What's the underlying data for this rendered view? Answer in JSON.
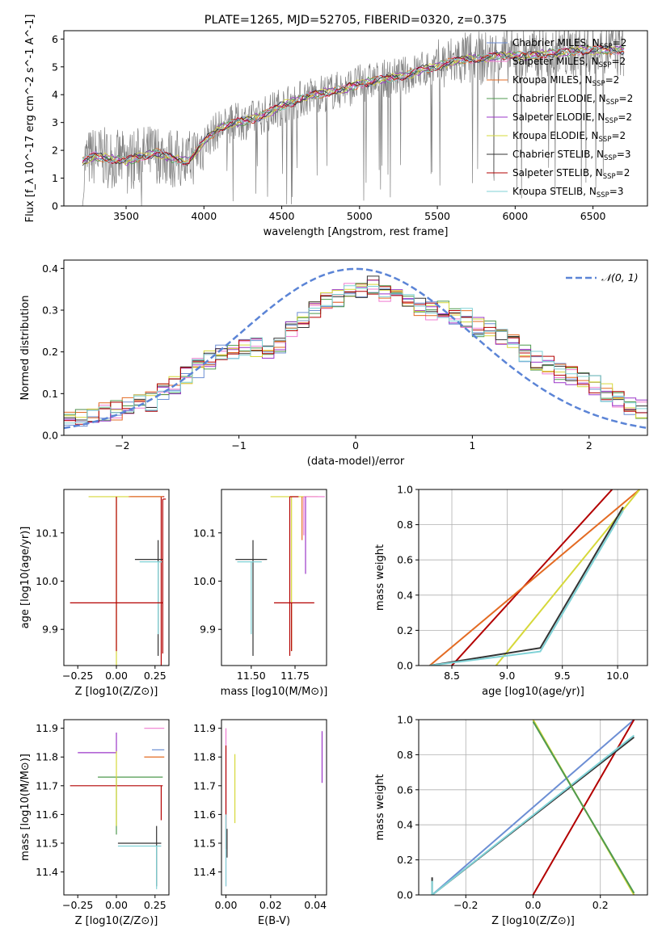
{
  "title": "PLATE=1265, MJD=52705, FIBERID=0320, z=0.375",
  "colors": {
    "Chabrier MILES": "#6c8ed4",
    "Salpeter MILES": "#f07bd0",
    "Kroupa MILES": "#e36b23",
    "Chabrier ELODIE": "#4f9a4f",
    "Salpeter ELODIE": "#9b37c9",
    "Kroupa ELODIE": "#d6d83a",
    "Chabrier STELIB": "#333333",
    "Salpeter STELIB": "#b30000",
    "Kroupa STELIB": "#7fd2d6",
    "data": "#808080",
    "normal": "#5b84d6"
  },
  "chart_data": [
    {
      "type": "line",
      "title": "PLATE=1265, MJD=52705, FIBERID=0320, z=0.375",
      "xlabel": "wavelength [Angstrom, rest frame]",
      "ylabel": "Flux [f_λ 10^-17 erg cm^-2 s^-1 A^-1]",
      "xlim": [
        3100,
        6850
      ],
      "ylim": [
        0,
        6.3
      ],
      "xticks": [
        3500,
        4000,
        4500,
        5000,
        5500,
        6000,
        6500
      ],
      "yticks": [
        0,
        1,
        2,
        3,
        4,
        5,
        6
      ],
      "legend_position": "top-right",
      "legend": [
        {
          "model": "Chabrier MILES",
          "nssp": "2"
        },
        {
          "model": "Salpeter MILES",
          "nssp": "2"
        },
        {
          "model": "Kroupa MILES",
          "nssp": "2"
        },
        {
          "model": "Chabrier ELODIE",
          "nssp": "2"
        },
        {
          "model": "Salpeter ELODIE",
          "nssp": "2"
        },
        {
          "model": "Kroupa ELODIE",
          "nssp": "2"
        },
        {
          "model": "Chabrier STELIB",
          "nssp": "3"
        },
        {
          "model": "Salpeter STELIB",
          "nssp": "2"
        },
        {
          "model": "Kroupa STELIB",
          "nssp": "3"
        }
      ],
      "model_continuum": {
        "x": [
          3220,
          3300,
          3400,
          3500,
          3600,
          3700,
          3800,
          3900,
          4000,
          4100,
          4200,
          4300,
          4400,
          4500,
          4600,
          4700,
          4800,
          4900,
          5000,
          5100,
          5200,
          5300,
          5400,
          5500,
          5600,
          5700,
          5800,
          5900,
          6000,
          6100,
          6200,
          6300,
          6400,
          6500,
          6600,
          6700
        ],
        "y": [
          1.6,
          1.8,
          1.7,
          1.6,
          1.8,
          1.9,
          1.7,
          1.6,
          2.3,
          2.8,
          3.0,
          3.1,
          3.3,
          3.6,
          3.8,
          4.0,
          4.1,
          4.2,
          4.4,
          4.5,
          4.6,
          4.7,
          4.9,
          5.0,
          5.2,
          5.3,
          5.3,
          5.4,
          5.4,
          5.4,
          5.5,
          5.5,
          5.6,
          5.6,
          5.6,
          5.6
        ]
      }
    },
    {
      "type": "line",
      "xlabel": "(data-model)/error",
      "ylabel": "Normed distribution",
      "xlim": [
        -2.5,
        2.5
      ],
      "ylim": [
        0,
        0.42
      ],
      "xticks": [
        -2,
        -1,
        0,
        1,
        2
      ],
      "yticks": [
        0,
        0.1,
        0.2,
        0.3,
        0.4
      ],
      "legend": [
        "𝒩(0, 1)"
      ],
      "legend_position": "top-right",
      "bin_edges": [
        -2.5,
        2.5
      ],
      "nbins": 50,
      "histogram_envelope": [
        0.04,
        0.045,
        0.05,
        0.055,
        0.06,
        0.07,
        0.075,
        0.08,
        0.1,
        0.12,
        0.14,
        0.16,
        0.18,
        0.2,
        0.2,
        0.21,
        0.21,
        0.2,
        0.22,
        0.25,
        0.28,
        0.3,
        0.32,
        0.33,
        0.34,
        0.35,
        0.36,
        0.34,
        0.33,
        0.32,
        0.31,
        0.3,
        0.3,
        0.29,
        0.28,
        0.26,
        0.25,
        0.23,
        0.22,
        0.2,
        0.18,
        0.17,
        0.15,
        0.14,
        0.13,
        0.12,
        0.1,
        0.09,
        0.07,
        0.06
      ]
    },
    {
      "type": "scatter",
      "xlabel": "Z [log10(Z/Z⊙)]",
      "ylabel": "age  [log10(age/yr)]",
      "xlim": [
        -0.34,
        0.34
      ],
      "ylim": [
        9.825,
        10.19
      ],
      "xticks": [
        -0.25,
        0.0,
        0.25
      ],
      "yticks": [
        9.9,
        10.0,
        10.1
      ]
    },
    {
      "type": "scatter",
      "xlabel": "mass [log10(M/M⊙)]",
      "ylabel": "",
      "xlim": [
        11.33,
        11.93
      ],
      "ylim": [
        9.825,
        10.19
      ],
      "xticks": [
        11.5,
        11.75
      ],
      "yticks": [
        9.9,
        10.0,
        10.1
      ]
    },
    {
      "type": "line",
      "xlabel": "age  [log10(age/yr)]",
      "ylabel": "mass weight",
      "xlim": [
        8.2,
        10.27
      ],
      "ylim": [
        0,
        1.0
      ],
      "xticks": [
        8.5,
        9.0,
        9.5,
        10.0
      ],
      "yticks": [
        0.0,
        0.2,
        0.4,
        0.6,
        0.8,
        1.0
      ]
    },
    {
      "type": "scatter",
      "xlabel": "Z [log10(Z/Z⊙)]",
      "ylabel": "mass [log10(M/M⊙)]",
      "xlim": [
        -0.34,
        0.34
      ],
      "ylim": [
        11.32,
        11.93
      ],
      "xticks": [
        -0.25,
        0.0,
        0.25
      ],
      "yticks": [
        11.4,
        11.5,
        11.6,
        11.7,
        11.8,
        11.9
      ]
    },
    {
      "type": "scatter",
      "xlabel": "E(B-V)",
      "ylabel": "",
      "xlim": [
        -0.002,
        0.045
      ],
      "ylim": [
        11.32,
        11.93
      ],
      "xticks": [
        0.0,
        0.02,
        0.04
      ],
      "yticks": [
        11.4,
        11.5,
        11.6,
        11.7,
        11.8,
        11.9
      ]
    },
    {
      "type": "line",
      "xlabel": "Z [log10(Z/Z⊙)]",
      "ylabel": "mass weight",
      "xlim": [
        -0.34,
        0.34
      ],
      "ylim": [
        0,
        1.0
      ],
      "xticks": [
        -0.2,
        0.0,
        0.2
      ],
      "yticks": [
        0.0,
        0.2,
        0.4,
        0.6,
        0.8,
        1.0
      ]
    }
  ]
}
